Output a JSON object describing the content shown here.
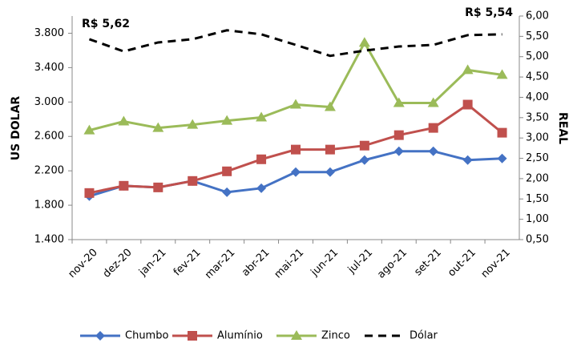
{
  "chart_data": {
    "type": "line",
    "y_label": "US DOLAR",
    "y2_label": "REAL",
    "categories": [
      "nov-20",
      "dez-20",
      "jan-21",
      "fev-21",
      "mar-21",
      "abr-21",
      "mai-21",
      "jun-21",
      "jul-21",
      "ago-21",
      "set-21",
      "out-21",
      "nov-21"
    ],
    "series": [
      {
        "name": "Chumbo",
        "color": "#4472c4",
        "marker": "diamond",
        "values": [
          1905,
          2026,
          2007,
          2082,
          1951,
          1998,
          2185,
          2185,
          2325,
          2428,
          2428,
          2325,
          2344
        ]
      },
      {
        "name": "Alumínio",
        "color": "#c0504d",
        "marker": "square",
        "values": [
          1942,
          2026,
          2007,
          2082,
          2194,
          2334,
          2447,
          2447,
          2493,
          2615,
          2699,
          2970,
          2643
        ]
      },
      {
        "name": "Zinco",
        "color": "#9bbb59",
        "marker": "triangle",
        "values": [
          2671,
          2774,
          2699,
          2736,
          2783,
          2821,
          2970,
          2942,
          3690,
          2989,
          2989,
          3372,
          3316
        ]
      },
      {
        "name": "Dólar",
        "color": "#000000",
        "dash": true,
        "axis": "y2",
        "values": [
          5.43,
          5.13,
          5.35,
          5.43,
          5.65,
          5.55,
          5.29,
          5.02,
          5.15,
          5.25,
          5.29,
          5.53,
          5.55
        ]
      }
    ],
    "annotations": [
      "R$ 5,62",
      "R$ 5,54"
    ],
    "ylim": [
      1400,
      4000
    ],
    "yticks": [
      {
        "value": 1400,
        "label": "1.400"
      },
      {
        "value": 1800,
        "label": "1.800"
      },
      {
        "value": 2200,
        "label": "2.200"
      },
      {
        "value": 2600,
        "label": "2.600"
      },
      {
        "value": 3000,
        "label": "3.000"
      },
      {
        "value": 3400,
        "label": "3.400"
      },
      {
        "value": 3800,
        "label": "3.800"
      }
    ],
    "y2lim": [
      0.5,
      6
    ],
    "y2ticks": [
      {
        "value": 0.5,
        "label": "0,50"
      },
      {
        "value": 1,
        "label": "1,00"
      },
      {
        "value": 1.5,
        "label": "1,50"
      },
      {
        "value": 2,
        "label": "2,00"
      },
      {
        "value": 2.5,
        "label": "2,50"
      },
      {
        "value": 3,
        "label": "3,00"
      },
      {
        "value": 3.5,
        "label": "3,50"
      },
      {
        "value": 4,
        "label": "4,00"
      },
      {
        "value": 4.5,
        "label": "4,50"
      },
      {
        "value": 5,
        "label": "5,00"
      },
      {
        "value": 5.5,
        "label": "5,50"
      },
      {
        "value": 6,
        "label": "6,00"
      }
    ],
    "grid": false,
    "legend": "bottom"
  }
}
